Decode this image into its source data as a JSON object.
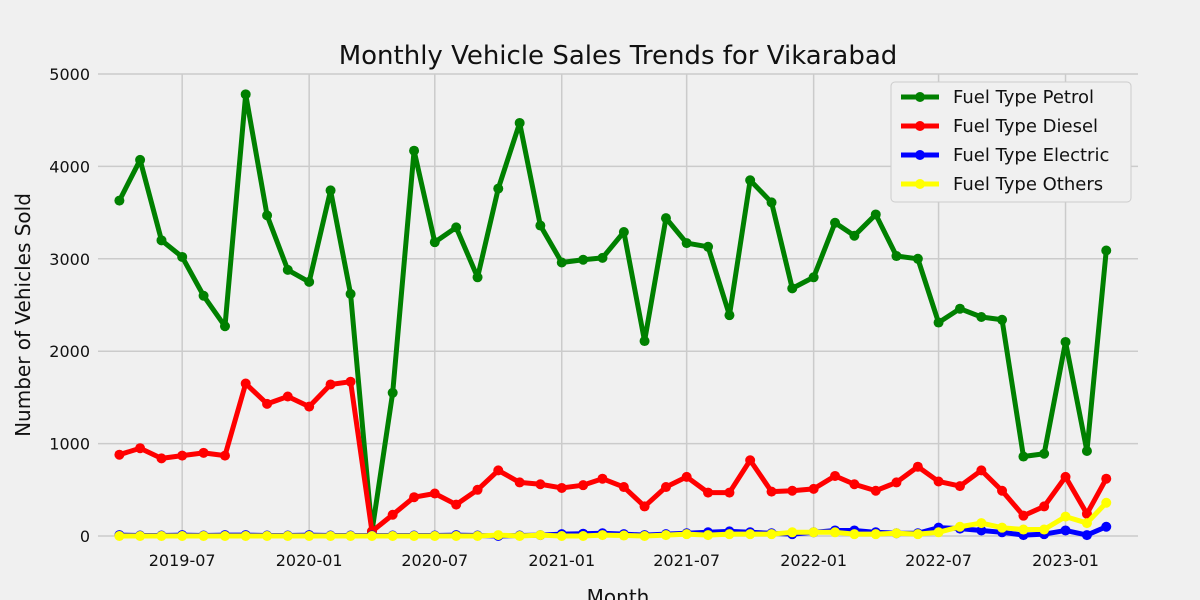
{
  "chart_data": {
    "type": "line",
    "title": "Monthly Vehicle Sales Trends for Vikarabad",
    "xlabel": "Month",
    "ylabel": "Number of Vehicles Sold",
    "ylim": [
      0,
      5000
    ],
    "yticks": [
      0,
      1000,
      2000,
      3000,
      4000,
      5000
    ],
    "ytick_labels": [
      "0",
      "1000",
      "2000",
      "3000",
      "4000",
      "5000"
    ],
    "xlim": [
      "2019-03-01",
      "2023-04-16"
    ],
    "xticks": [
      "2019-07",
      "2020-01",
      "2020-07",
      "2021-01",
      "2021-07",
      "2022-01",
      "2022-07",
      "2023-01"
    ],
    "xtick_labels": [
      "2019-07",
      "2020-01",
      "2020-07",
      "2021-01",
      "2021-07",
      "2022-01",
      "2022-07",
      "2023-01"
    ],
    "grid": true,
    "legend_position": "top-right",
    "x": [
      "2019-04",
      "2019-05",
      "2019-06",
      "2019-07",
      "2019-08",
      "2019-09",
      "2019-10",
      "2019-11",
      "2019-12",
      "2020-01",
      "2020-02",
      "2020-03",
      "2020-04",
      "2020-05",
      "2020-06",
      "2020-07",
      "2020-08",
      "2020-09",
      "2020-10",
      "2020-11",
      "2020-12",
      "2021-01",
      "2021-02",
      "2021-03",
      "2021-04",
      "2021-05",
      "2021-06",
      "2021-07",
      "2021-08",
      "2021-09",
      "2021-10",
      "2021-11",
      "2021-12",
      "2022-01",
      "2022-02",
      "2022-03",
      "2022-04",
      "2022-05",
      "2022-06",
      "2022-07",
      "2022-08",
      "2022-09",
      "2022-10",
      "2022-11",
      "2022-12",
      "2023-01",
      "2023-02",
      "2023-03"
    ],
    "series": [
      {
        "name": "Fuel Type Petrol",
        "color": "#008000",
        "values": [
          3630,
          4070,
          3200,
          3020,
          2600,
          2270,
          4780,
          3470,
          2880,
          2750,
          3740,
          2620,
          50,
          1550,
          4170,
          3180,
          3340,
          2800,
          3760,
          4470,
          3360,
          2960,
          2990,
          3010,
          3290,
          2110,
          3440,
          3170,
          3130,
          2390,
          3850,
          3610,
          2680,
          2800,
          3390,
          3250,
          3480,
          3030,
          3000,
          2310,
          2460,
          2370,
          2340,
          860,
          890,
          2100,
          920,
          3090
        ]
      },
      {
        "name": "Fuel Type Diesel",
        "color": "#ff0000",
        "values": [
          880,
          950,
          840,
          870,
          900,
          870,
          1650,
          1430,
          1510,
          1400,
          1640,
          1670,
          50,
          230,
          420,
          460,
          340,
          500,
          710,
          580,
          560,
          520,
          550,
          620,
          530,
          320,
          530,
          640,
          470,
          470,
          820,
          480,
          490,
          510,
          650,
          560,
          490,
          580,
          750,
          590,
          540,
          710,
          490,
          220,
          320,
          640,
          240,
          620
        ]
      },
      {
        "name": "Fuel Type Electric",
        "color": "#0000ff",
        "values": [
          10,
          5,
          5,
          10,
          5,
          10,
          10,
          5,
          5,
          10,
          5,
          5,
          5,
          5,
          5,
          5,
          10,
          5,
          0,
          5,
          10,
          20,
          25,
          30,
          20,
          10,
          20,
          30,
          40,
          50,
          40,
          30,
          20,
          40,
          60,
          60,
          40,
          30,
          30,
          90,
          80,
          60,
          40,
          10,
          20,
          60,
          10,
          100
        ]
      },
      {
        "name": "Fuel Type Others",
        "color": "#ffff00",
        "values": [
          0,
          0,
          0,
          0,
          0,
          0,
          0,
          0,
          0,
          0,
          0,
          0,
          0,
          0,
          0,
          0,
          0,
          0,
          10,
          0,
          10,
          0,
          0,
          10,
          5,
          0,
          10,
          20,
          10,
          20,
          20,
          20,
          40,
          40,
          40,
          20,
          20,
          30,
          20,
          40,
          100,
          140,
          90,
          70,
          70,
          210,
          140,
          360
        ]
      }
    ]
  }
}
